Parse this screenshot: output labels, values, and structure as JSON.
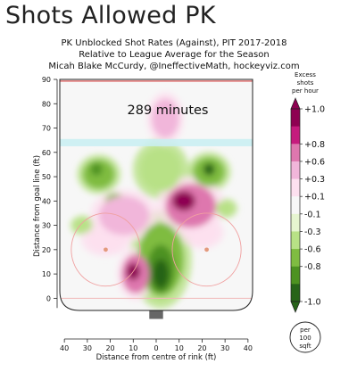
{
  "slide_title": "Shots Allowed PK",
  "chart_data": {
    "type": "heatmap",
    "title_lines": [
      "PK Unblocked Shot Rates (Against), PIT 2017-2018",
      "Relative to League Average for the Season",
      "Micah Blake McCurdy, @IneffectiveMath, hockeyviz.com"
    ],
    "annotation": "289 minutes",
    "xlabel": "Distance from centre of rink (ft)",
    "ylabel": "Distance from goal line (ft)",
    "xlim": [
      -42,
      42
    ],
    "ylim": [
      -5,
      90
    ],
    "x_ticks": [
      "40",
      "30",
      "20",
      "10",
      "0",
      "10",
      "20",
      "30",
      "40"
    ],
    "y_ticks": [
      "0",
      "10",
      "20",
      "30",
      "40",
      "50",
      "60",
      "70",
      "80",
      "90"
    ],
    "colorbar": {
      "title": "Excess shots per hour",
      "labels": [
        "+1.0",
        "+0.8",
        "+0.6",
        "+0.3",
        "+0.1",
        "-0.1",
        "-0.3",
        "-0.6",
        "-0.8",
        "-1.0"
      ],
      "colors": [
        "#8e0152",
        "#c51b7d",
        "#de77ae",
        "#f1b6da",
        "#fde0ef",
        "#f7f7f7",
        "#e6f5d0",
        "#b8e186",
        "#7fbc41",
        "#4d9221",
        "#276419"
      ],
      "unit_badge": "per 100 sqft"
    },
    "hot_regions": [
      {
        "x": 12,
        "y": 40,
        "rx": 5,
        "ry": 4,
        "value": 1.0
      },
      {
        "x": 15,
        "y": 38,
        "rx": 11,
        "ry": 9,
        "value": 0.6
      },
      {
        "x": -10,
        "y": 11,
        "rx": 3,
        "ry": 3.5,
        "value": 1.0
      },
      {
        "x": -9,
        "y": 10,
        "rx": 6,
        "ry": 8,
        "value": 0.6
      },
      {
        "x": -14,
        "y": 34,
        "rx": 11,
        "ry": 8,
        "value": 0.3
      },
      {
        "x": 4,
        "y": 74,
        "rx": 6,
        "ry": 8,
        "value": 0.3
      },
      {
        "x": -22,
        "y": 24,
        "rx": 8,
        "ry": 5,
        "value": 0.1
      },
      {
        "x": 20,
        "y": 27,
        "rx": 7,
        "ry": 5,
        "value": 0.1
      }
    ],
    "cold_regions": [
      {
        "x": 2,
        "y": 16,
        "rx": 10,
        "ry": 15,
        "value": -0.6
      },
      {
        "x": 2,
        "y": 12,
        "rx": 6,
        "ry": 10,
        "value": -0.8
      },
      {
        "x": 2,
        "y": 10,
        "rx": 3.5,
        "ry": 6,
        "value": -1.0
      },
      {
        "x": 23,
        "y": 52,
        "rx": 7,
        "ry": 6,
        "value": -0.6
      },
      {
        "x": 23,
        "y": 53,
        "rx": 2.5,
        "ry": 2.5,
        "value": -1.0
      },
      {
        "x": -25,
        "y": 51,
        "rx": 7,
        "ry": 6,
        "value": -0.6
      },
      {
        "x": -26,
        "y": 53,
        "rx": 2.5,
        "ry": 2.5,
        "value": -0.8
      },
      {
        "x": -18,
        "y": 40,
        "rx": 4,
        "ry": 3,
        "value": -0.6
      },
      {
        "x": 2,
        "y": 53,
        "rx": 9,
        "ry": 9,
        "value": -0.3
      },
      {
        "x": -32,
        "y": 30,
        "rx": 4,
        "ry": 3,
        "value": -0.3
      },
      {
        "x": 30,
        "y": 37,
        "rx": 4,
        "ry": 3,
        "value": -0.3
      }
    ],
    "rink_features": {
      "goal_line_y": 0,
      "blue_line_y": 64,
      "faceoff_dots": [
        {
          "x": -22,
          "y": 20
        },
        {
          "x": 22,
          "y": 20
        }
      ],
      "faceoff_circle_radius": 15
    }
  }
}
